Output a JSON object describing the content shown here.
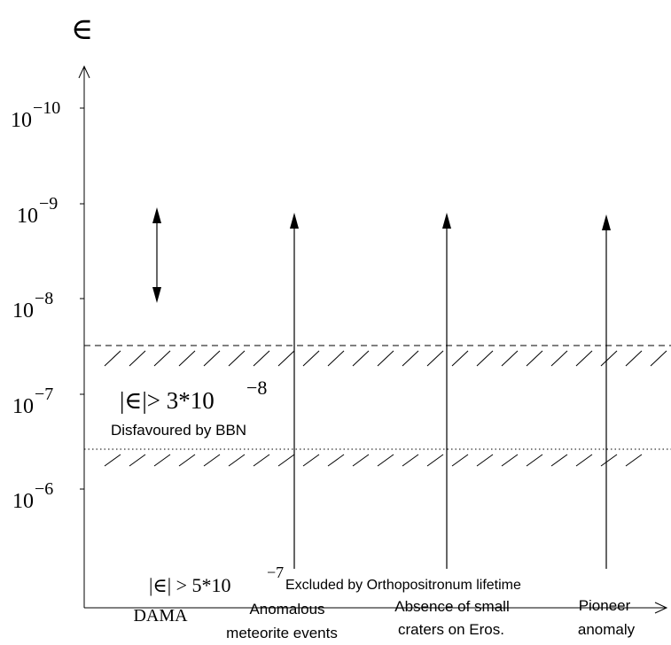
{
  "axis": {
    "y_symbol": "∈",
    "y_ticks": [
      {
        "base": "10",
        "exp": "−10"
      },
      {
        "base": "10",
        "exp": "−9"
      },
      {
        "base": "10",
        "exp": "−8"
      },
      {
        "base": "10",
        "exp": "−7"
      },
      {
        "base": "10",
        "exp": "−6"
      }
    ]
  },
  "bbn": {
    "formula_main": "|∈|> 3*10",
    "formula_exp": "−8",
    "label": "Disfavoured by BBN"
  },
  "ortho": {
    "formula_main": "|∈| > 5*10",
    "formula_exp": "−7",
    "label": "Excluded by Orthopositronum lifetime"
  },
  "categories": [
    {
      "lines": [
        "DAMA"
      ]
    },
    {
      "lines": [
        "Anomalous",
        "meteorite events"
      ]
    },
    {
      "lines": [
        "Absence of small",
        "craters on Eros."
      ]
    },
    {
      "lines": [
        "Pioneer",
        "anomaly"
      ]
    }
  ]
}
